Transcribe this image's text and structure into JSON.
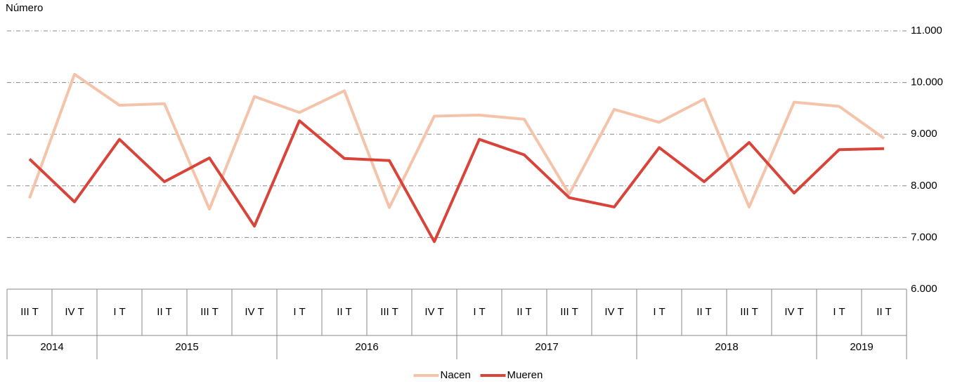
{
  "chart_data": {
    "type": "line",
    "y_label": "Número",
    "categories": [
      "III T",
      "IV T",
      "I T",
      "II T",
      "III T",
      "IV T",
      "I T",
      "II T",
      "III T",
      "IV T",
      "I T",
      "II T",
      "III T",
      "IV T",
      "I T",
      "II T",
      "III T",
      "IV T",
      "I T",
      "II T"
    ],
    "groups": [
      {
        "label": "2014",
        "span": 2
      },
      {
        "label": "2015",
        "span": 4
      },
      {
        "label": "2016",
        "span": 4
      },
      {
        "label": "2017",
        "span": 4
      },
      {
        "label": "2018",
        "span": 4
      },
      {
        "label": "2019",
        "span": 2
      }
    ],
    "series": [
      {
        "name": "Nacen",
        "color": "#f4c3aa",
        "values": [
          7760,
          10160,
          9560,
          9590,
          7550,
          9730,
          9420,
          9840,
          7580,
          9350,
          9370,
          9290,
          7840,
          9480,
          9230,
          9680,
          7590,
          9620,
          9540,
          8920
        ]
      },
      {
        "name": "Mueren",
        "color": "#d9443a",
        "values": [
          8520,
          7690,
          8900,
          8080,
          8540,
          7220,
          9260,
          8530,
          8490,
          6920,
          8900,
          8600,
          7770,
          7590,
          8740,
          8080,
          8840,
          7860,
          8700,
          8720
        ]
      }
    ],
    "ylim": [
      6000,
      11000
    ],
    "yticks": [
      {
        "value": 6000,
        "label": "6.000"
      },
      {
        "value": 7000,
        "label": "7.000"
      },
      {
        "value": 8000,
        "label": "8.000"
      },
      {
        "value": 9000,
        "label": "9.000"
      },
      {
        "value": 10000,
        "label": "10.000"
      },
      {
        "value": 11000,
        "label": "11.000"
      }
    ],
    "grid": true,
    "legend": "bottom"
  }
}
